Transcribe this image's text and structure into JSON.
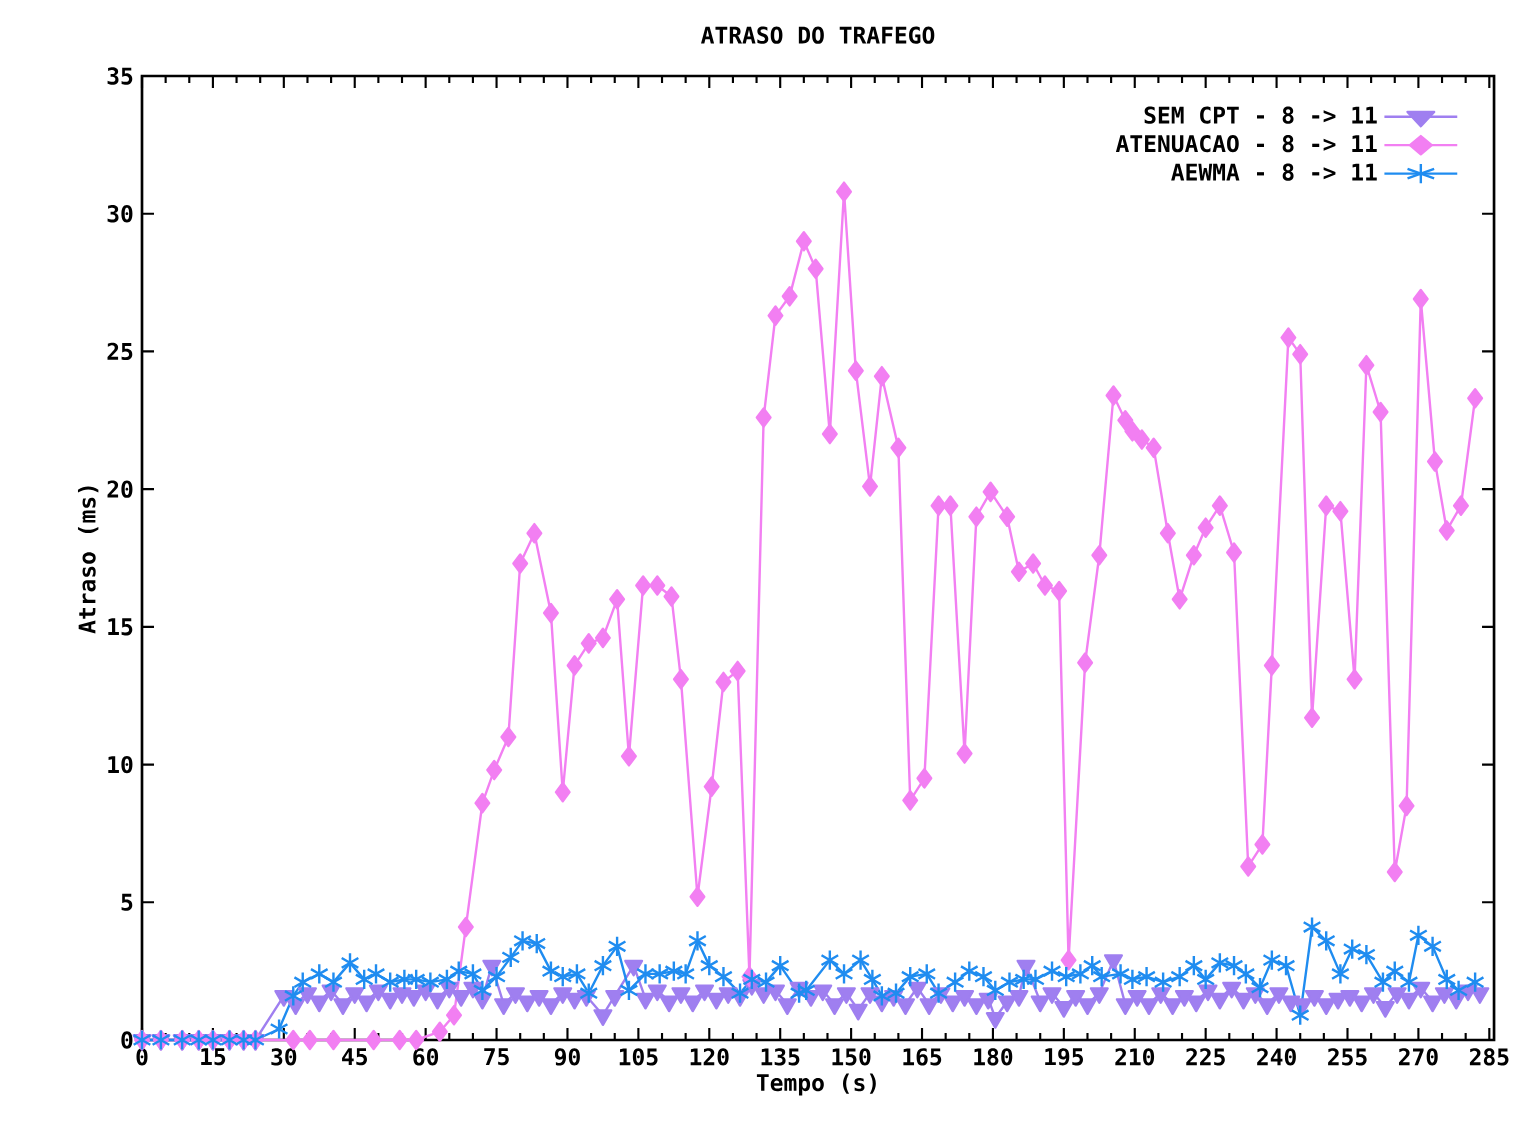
{
  "chart_data": {
    "type": "line",
    "title": "ATRASO DO TRAFEGO",
    "xlabel": "Tempo (s)",
    "ylabel": "Atraso (ms)",
    "xlim": [
      0,
      286
    ],
    "ylim": [
      0,
      35
    ],
    "xticks": [
      0,
      15,
      30,
      45,
      60,
      75,
      90,
      105,
      120,
      135,
      150,
      165,
      180,
      195,
      210,
      225,
      240,
      255,
      270,
      285
    ],
    "yticks": [
      0,
      5,
      10,
      15,
      20,
      25,
      30,
      35
    ],
    "legend": "top right",
    "series": [
      {
        "name": "SEM CPT - 8 -> 11",
        "color": "#9f7ff0",
        "marker": "triangle",
        "x": [
          0,
          4,
          8.5,
          12,
          15,
          18.5,
          21.5,
          24,
          30,
          32.5,
          35,
          37.5,
          40,
          42.5,
          45,
          47.5,
          50,
          52.5,
          55,
          57.5,
          60,
          62.5,
          65,
          67.5,
          70,
          72,
          74,
          76.5,
          79,
          81.5,
          84,
          86.5,
          89,
          91.5,
          94,
          97.5,
          100,
          104,
          106.5,
          109,
          111.5,
          114,
          116.5,
          119,
          121.5,
          124,
          126.5,
          129,
          131.5,
          134,
          136.5,
          139,
          141.5,
          144,
          146.5,
          149,
          151.5,
          154,
          156.5,
          159,
          161.5,
          164,
          166.5,
          169,
          171.5,
          174,
          176.5,
          179,
          180.5,
          183,
          185.5,
          187,
          190,
          192.5,
          195,
          197.5,
          200,
          202.5,
          205.5,
          208,
          210.5,
          213,
          215.5,
          218,
          220.5,
          223,
          225.5,
          228,
          230.5,
          233,
          235.5,
          238,
          240.5,
          243,
          245.5,
          248,
          250.5,
          253,
          255.5,
          258,
          260.5,
          263,
          265.5,
          268,
          270.5,
          273,
          275.5,
          278,
          280.5,
          283
        ],
        "values": [
          0,
          0,
          0,
          0,
          0,
          0,
          0,
          0,
          1.6,
          1.3,
          1.7,
          1.4,
          1.8,
          1.3,
          1.7,
          1.4,
          1.8,
          1.5,
          1.7,
          1.6,
          1.8,
          1.5,
          1.9,
          1.6,
          1.9,
          1.5,
          2.7,
          1.3,
          1.7,
          1.4,
          1.6,
          1.3,
          1.7,
          1.5,
          1.6,
          0.9,
          1.6,
          2.7,
          1.5,
          1.8,
          1.4,
          1.7,
          1.4,
          1.8,
          1.5,
          1.7,
          1.6,
          2.0,
          1.7,
          1.8,
          1.3,
          1.9,
          1.6,
          1.8,
          1.3,
          1.7,
          1.1,
          1.7,
          1.4,
          1.6,
          1.3,
          1.9,
          1.3,
          1.7,
          1.4,
          1.6,
          1.3,
          1.5,
          0.8,
          1.4,
          1.6,
          2.7,
          1.4,
          1.7,
          1.2,
          1.6,
          1.3,
          1.7,
          2.9,
          1.3,
          1.6,
          1.3,
          1.7,
          1.3,
          1.6,
          1.4,
          1.8,
          1.5,
          1.9,
          1.5,
          1.7,
          1.3,
          1.7,
          1.4,
          1.3,
          1.6,
          1.3,
          1.5,
          1.6,
          1.4,
          1.7,
          1.2,
          1.7,
          1.5,
          1.9,
          1.4,
          1.7,
          1.5,
          1.8,
          1.7
        ]
      },
      {
        "name": "ATENUACAO - 8 -> 11",
        "color": "#f27ff2",
        "marker": "diamond",
        "x": [
          0,
          4,
          8.5,
          12,
          15,
          18.5,
          21.5,
          24,
          32,
          35.5,
          40.5,
          49,
          54.5,
          58,
          63,
          66,
          68.5,
          72,
          74.5,
          77.5,
          80,
          83,
          86.5,
          89,
          91.5,
          94.5,
          97.5,
          100.5,
          103,
          106,
          109,
          112,
          114,
          117.5,
          120.5,
          123,
          126,
          128.5,
          131.5,
          134,
          137,
          140,
          142.5,
          145.5,
          148.5,
          151,
          154,
          156.5,
          160,
          162.5,
          165.5,
          168.5,
          171,
          174,
          176.5,
          179.5,
          183,
          185.5,
          188.5,
          191,
          194,
          196,
          199.5,
          202.5,
          205.5,
          208,
          209.5,
          211.5,
          214,
          217,
          219.5,
          222.5,
          225,
          228,
          231,
          234,
          237,
          239,
          242.5,
          245,
          247.5,
          250.5,
          253.5,
          256.5,
          259,
          262,
          265,
          267.5,
          270.5,
          273.5,
          276,
          279,
          282
        ],
        "values": [
          0,
          0,
          0,
          0,
          0,
          0,
          0,
          0,
          0,
          0,
          0,
          0,
          0,
          0,
          0.3,
          0.9,
          4.1,
          8.6,
          9.8,
          11.0,
          17.3,
          18.4,
          15.5,
          9.0,
          13.6,
          14.4,
          14.6,
          16.0,
          10.3,
          16.5,
          16.5,
          16.1,
          13.1,
          5.2,
          9.2,
          13.0,
          13.4,
          2.3,
          22.6,
          26.3,
          27.0,
          29.0,
          28.0,
          22.0,
          30.8,
          24.3,
          20.1,
          24.1,
          21.5,
          8.7,
          9.5,
          19.4,
          19.4,
          10.4,
          19.0,
          19.9,
          19.0,
          17.0,
          17.3,
          16.5,
          16.3,
          2.9,
          13.7,
          17.6,
          23.4,
          22.5,
          22.1,
          21.8,
          21.5,
          18.4,
          16.0,
          17.6,
          18.6,
          19.4,
          17.7,
          6.3,
          7.1,
          13.6,
          25.5,
          24.9,
          11.7,
          19.4,
          19.2,
          13.1,
          24.5,
          22.8,
          6.1,
          8.5,
          26.9,
          21.0,
          18.5,
          19.4,
          23.3
        ]
      },
      {
        "name": "AEWMA - 8 -> 11",
        "color": "#1f8cf0",
        "marker": "cross",
        "x": [
          0,
          4,
          8.5,
          12,
          15,
          18.5,
          21.5,
          24,
          29,
          32,
          34,
          37.5,
          40.5,
          44,
          47,
          49.5,
          52.5,
          55.5,
          58,
          61,
          64.5,
          67,
          70,
          72,
          75,
          78,
          80.5,
          83.5,
          86.5,
          89,
          92,
          94.5,
          97.5,
          100.5,
          103,
          106.5,
          109.5,
          112.5,
          115,
          117.5,
          120,
          123,
          126.5,
          129,
          132,
          135,
          139,
          140.5,
          145.5,
          148.5,
          152,
          154.5,
          156.5,
          159.5,
          162.5,
          166,
          168.5,
          172,
          175,
          178,
          180.5,
          183.5,
          186.5,
          189,
          192.5,
          195.5,
          198.5,
          201,
          203,
          207,
          209.5,
          212.5,
          216,
          219.5,
          222.5,
          225,
          228,
          231,
          233.5,
          236.5,
          239,
          242,
          245,
          247.5,
          250.5,
          253.5,
          256,
          259,
          262.5,
          265,
          268,
          270,
          273,
          276,
          278.5,
          282
        ],
        "values": [
          0,
          0,
          0,
          0,
          0,
          0,
          0,
          0,
          0.4,
          1.6,
          2.1,
          2.4,
          2.1,
          2.8,
          2.2,
          2.4,
          2.1,
          2.2,
          2.2,
          2.1,
          2.2,
          2.5,
          2.4,
          1.8,
          2.3,
          3.0,
          3.6,
          3.5,
          2.5,
          2.3,
          2.4,
          1.7,
          2.7,
          3.4,
          1.8,
          2.4,
          2.4,
          2.5,
          2.4,
          3.6,
          2.7,
          2.3,
          1.7,
          2.2,
          2.1,
          2.7,
          1.7,
          1.8,
          2.9,
          2.4,
          2.9,
          2.2,
          1.6,
          1.7,
          2.3,
          2.4,
          1.7,
          2.1,
          2.5,
          2.3,
          1.8,
          2.1,
          2.2,
          2.2,
          2.5,
          2.3,
          2.4,
          2.7,
          2.3,
          2.4,
          2.2,
          2.3,
          2.1,
          2.3,
          2.7,
          2.2,
          2.8,
          2.7,
          2.4,
          1.9,
          2.9,
          2.7,
          0.9,
          4.1,
          3.6,
          2.4,
          3.3,
          3.1,
          2.1,
          2.5,
          2.1,
          3.8,
          3.4,
          2.2,
          1.8,
          2.1
        ]
      }
    ]
  }
}
